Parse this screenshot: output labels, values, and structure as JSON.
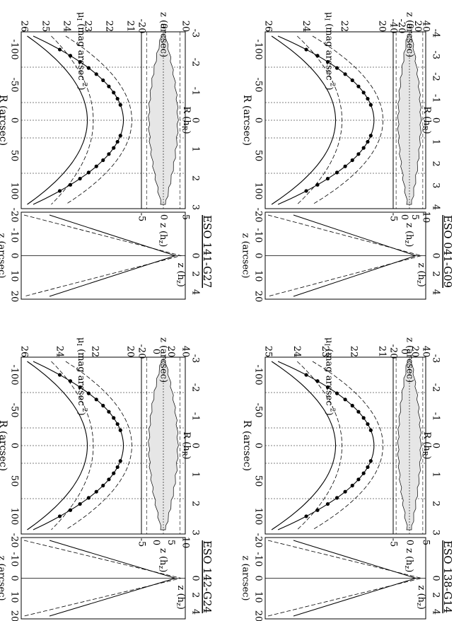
{
  "figure": {
    "panels": [
      {
        "id": "eso041",
        "galaxy": "ESO 041-G09",
        "r_axis_label": "R (arcsec)",
        "r_ticks": [
          "-100",
          "-50",
          "0",
          "50",
          "100"
        ],
        "rh_axis_label": "R (h",
        "rh_axis_sub": "R",
        "rh_ticks": [
          "-4",
          "-3",
          "-2",
          "-1",
          "0",
          "1",
          "2",
          "3",
          "4"
        ],
        "z_axis_label": "z (arcsec)",
        "z_ticks": [
          "40",
          "20",
          "0",
          "-20",
          "-40"
        ],
        "zh_axis_label": "z (h",
        "zh_axis_sub": "z",
        "zh_ticks": [
          "10",
          "5",
          "0",
          "-5"
        ],
        "mu_axis_label": "μ",
        "mu_axis_sub": "I",
        "mu_axis_unit": " (mag arcsec",
        "mu_ticks": [
          "26",
          "24",
          "22",
          "20"
        ],
        "vz_axis_label": "z (arcsec)",
        "vz_ticks": [
          "-20",
          "-10",
          "0",
          "10",
          "20"
        ],
        "vzh_axis_label": "z (h",
        "vzh_axis_sub": "z",
        "vzh_ticks": [
          "0",
          "2",
          "4"
        ]
      },
      {
        "id": "eso138",
        "galaxy": "ESO 138-G14",
        "r_axis_label": "R (arcsec)",
        "r_ticks": [
          "-100",
          "-50",
          "0",
          "50",
          "100"
        ],
        "rh_axis_label": "R (h",
        "rh_axis_sub": "R",
        "rh_ticks": [
          "-3",
          "-2",
          "-1",
          "0",
          "1",
          "2",
          "3"
        ],
        "z_axis_label": "z (arcsec)",
        "z_ticks": [
          "40",
          "20",
          "0",
          "-20"
        ],
        "zh_axis_label": "z (h",
        "zh_axis_sub": "z",
        "zh_ticks": [
          "5",
          "0",
          "-5"
        ],
        "mu_axis_label": "μ",
        "mu_axis_sub": "I",
        "mu_axis_unit": " (mag arcsec",
        "mu_ticks": [
          "25",
          "24",
          "23",
          "22",
          "21"
        ],
        "vz_axis_label": "z (arcsec)",
        "vz_ticks": [
          "-20",
          "-10",
          "0",
          "10",
          "20"
        ],
        "vzh_axis_label": "z (h",
        "vzh_axis_sub": "z",
        "vzh_ticks": [
          "0",
          "2",
          "4"
        ]
      },
      {
        "id": "eso141",
        "galaxy": "ESO 141-G27",
        "r_axis_label": "R (arcsec)",
        "r_ticks": [
          "-100",
          "-50",
          "0",
          "50",
          "100"
        ],
        "rh_axis_label": "R (h",
        "rh_axis_sub": "R",
        "rh_ticks": [
          "-3",
          "-2",
          "-1",
          "0",
          "1",
          "2",
          "3"
        ],
        "z_axis_label": "z (arcsec)",
        "z_ticks": [
          "20",
          "0",
          "-20"
        ],
        "zh_axis_label": "z (h",
        "zh_axis_sub": "z",
        "zh_ticks": [
          "5",
          "0",
          "-5"
        ],
        "mu_axis_label": "μ",
        "mu_axis_sub": "I",
        "mu_axis_unit": " (mag arcsec",
        "mu_ticks": [
          "26",
          "25",
          "24",
          "23",
          "22",
          "21"
        ],
        "vz_axis_label": "z (arcsec)",
        "vz_ticks": [
          "-20",
          "-10",
          "0",
          "10",
          "20"
        ],
        "vzh_axis_label": "z (h",
        "vzh_axis_sub": "z",
        "vzh_ticks": [
          "0",
          "2",
          "4"
        ]
      },
      {
        "id": "eso142",
        "galaxy": "ESO 142-G24",
        "r_axis_label": "R (arcsec)",
        "r_ticks": [
          "-100",
          "-50",
          "0",
          "50",
          "100"
        ],
        "rh_axis_label": "R (h",
        "rh_axis_sub": "R",
        "rh_ticks": [
          "-3",
          "-2",
          "-1",
          "0",
          "1",
          "2",
          "3"
        ],
        "z_axis_label": "z (arcsec)",
        "z_ticks": [
          "40",
          "20",
          "0",
          "-20"
        ],
        "zh_axis_label": "z (h",
        "zh_axis_sub": "z",
        "zh_ticks": [
          "10",
          "5",
          "0",
          "-5"
        ],
        "mu_axis_label": "μ",
        "mu_axis_sub": "I",
        "mu_axis_unit": " (mag arcsec",
        "mu_ticks": [
          "26",
          "24",
          "22",
          "20"
        ],
        "vz_axis_label": "z (arcsec)",
        "vz_ticks": [
          "-20",
          "-10",
          "0",
          "10",
          "20"
        ],
        "vzh_axis_label": "z (h",
        "vzh_axis_sub": "z",
        "vzh_ticks": [
          "0",
          "2",
          "4"
        ]
      }
    ]
  }
}
